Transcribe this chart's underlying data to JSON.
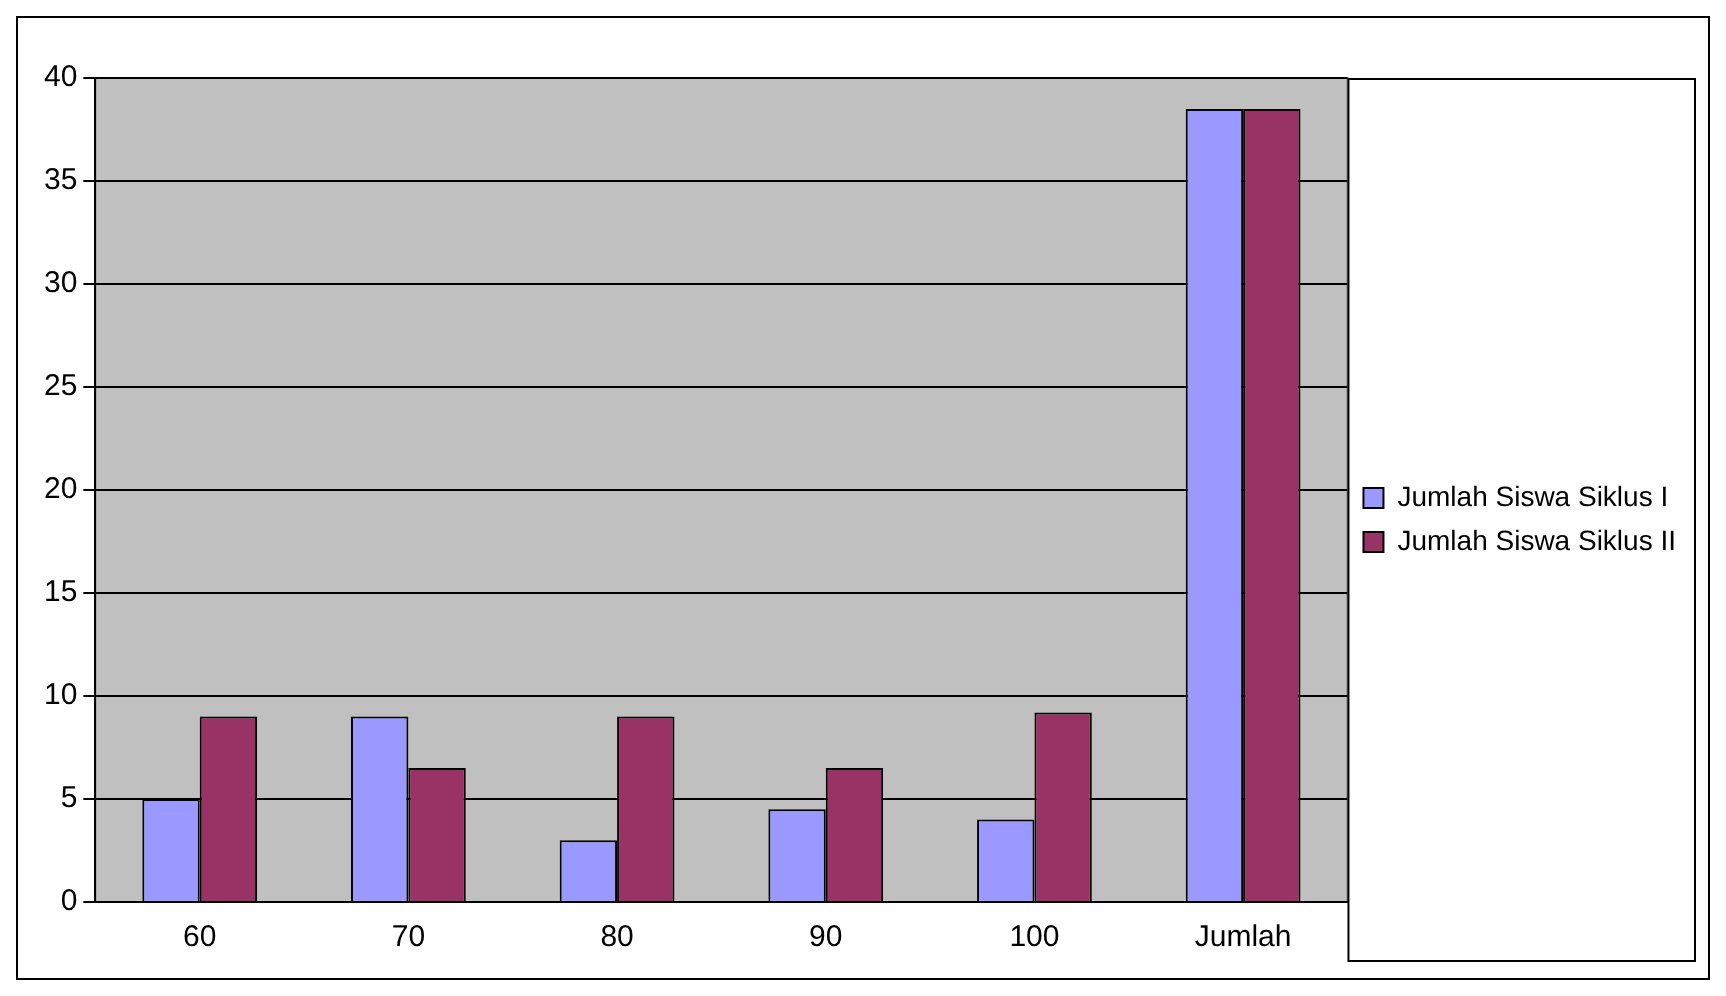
{
  "chart_data": {
    "type": "bar",
    "categories": [
      "60",
      "70",
      "80",
      "90",
      "100",
      "Jumlah"
    ],
    "series": [
      {
        "name": "Jumlah Siswa Siklus I",
        "color": "#9999ff",
        "values": [
          5,
          9,
          3,
          4.5,
          4,
          38.5
        ]
      },
      {
        "name": "Jumlah Siswa Siklus II",
        "color": "#993366",
        "values": [
          9,
          6.5,
          9,
          6.5,
          9.2,
          38.5
        ]
      }
    ],
    "ylim": [
      0,
      40
    ],
    "yticks": [
      0,
      5,
      10,
      15,
      20,
      25,
      30,
      35,
      40
    ],
    "grid": "y",
    "legend": "right"
  }
}
